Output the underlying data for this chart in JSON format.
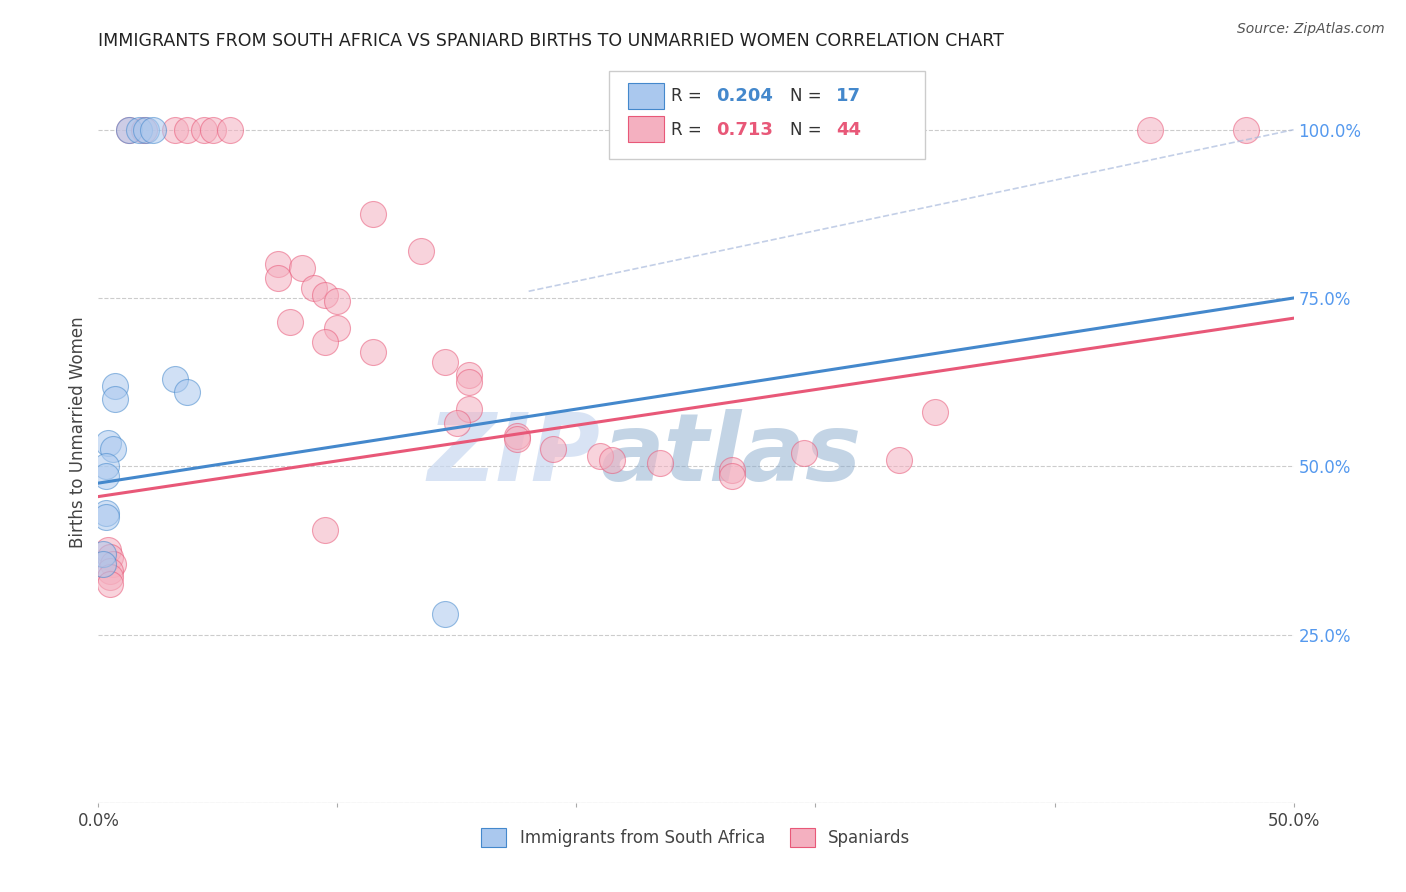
{
  "title": "IMMIGRANTS FROM SOUTH AFRICA VS SPANIARD BIRTHS TO UNMARRIED WOMEN CORRELATION CHART",
  "source": "Source: ZipAtlas.com",
  "ylabel": "Births to Unmarried Women",
  "legend_label_1": "Immigrants from South Africa",
  "legend_label_2": "Spaniards",
  "R1": "0.204",
  "N1": "17",
  "R2": "0.713",
  "N2": "44",
  "blue_color": "#aac8ee",
  "pink_color": "#f4b0c0",
  "blue_line_color": "#4488cc",
  "pink_line_color": "#e85878",
  "watermark_zip_color": "#c8d8f0",
  "watermark_atlas_color": "#88aacc",
  "background_color": "#ffffff",
  "grid_color": "#cccccc",
  "title_color": "#222222",
  "right_axis_color": "#5599ee",
  "blue_scatter": [
    [
      0.013,
      1.0
    ],
    [
      0.017,
      1.0
    ],
    [
      0.02,
      1.0
    ],
    [
      0.023,
      1.0
    ],
    [
      0.032,
      0.63
    ],
    [
      0.037,
      0.61
    ],
    [
      0.007,
      0.62
    ],
    [
      0.007,
      0.6
    ],
    [
      0.004,
      0.535
    ],
    [
      0.006,
      0.525
    ],
    [
      0.003,
      0.5
    ],
    [
      0.003,
      0.485
    ],
    [
      0.003,
      0.43
    ],
    [
      0.003,
      0.425
    ],
    [
      0.002,
      0.37
    ],
    [
      0.002,
      0.355
    ],
    [
      0.145,
      0.28
    ]
  ],
  "pink_scatter": [
    [
      0.013,
      1.0
    ],
    [
      0.019,
      1.0
    ],
    [
      0.032,
      1.0
    ],
    [
      0.037,
      1.0
    ],
    [
      0.044,
      1.0
    ],
    [
      0.048,
      1.0
    ],
    [
      0.055,
      1.0
    ],
    [
      0.44,
      1.0
    ],
    [
      0.48,
      1.0
    ],
    [
      0.115,
      0.875
    ],
    [
      0.135,
      0.82
    ],
    [
      0.075,
      0.8
    ],
    [
      0.085,
      0.795
    ],
    [
      0.075,
      0.78
    ],
    [
      0.09,
      0.765
    ],
    [
      0.095,
      0.755
    ],
    [
      0.1,
      0.745
    ],
    [
      0.08,
      0.715
    ],
    [
      0.1,
      0.705
    ],
    [
      0.095,
      0.685
    ],
    [
      0.115,
      0.67
    ],
    [
      0.145,
      0.655
    ],
    [
      0.155,
      0.635
    ],
    [
      0.155,
      0.625
    ],
    [
      0.155,
      0.585
    ],
    [
      0.15,
      0.565
    ],
    [
      0.175,
      0.545
    ],
    [
      0.175,
      0.54
    ],
    [
      0.19,
      0.525
    ],
    [
      0.21,
      0.515
    ],
    [
      0.215,
      0.51
    ],
    [
      0.235,
      0.505
    ],
    [
      0.265,
      0.495
    ],
    [
      0.265,
      0.485
    ],
    [
      0.295,
      0.52
    ],
    [
      0.335,
      0.51
    ],
    [
      0.35,
      0.58
    ],
    [
      0.095,
      0.405
    ],
    [
      0.004,
      0.375
    ],
    [
      0.005,
      0.365
    ],
    [
      0.006,
      0.355
    ],
    [
      0.005,
      0.345
    ],
    [
      0.005,
      0.335
    ],
    [
      0.005,
      0.325
    ]
  ],
  "blue_line_x": [
    0.0,
    0.5
  ],
  "blue_line_y": [
    0.475,
    0.75
  ],
  "pink_line_x": [
    0.0,
    0.5
  ],
  "pink_line_y": [
    0.455,
    0.72
  ],
  "dashed_line_x": [
    0.18,
    0.5
  ],
  "dashed_line_y": [
    0.76,
    1.0
  ],
  "xmin": 0.0,
  "xmax": 0.5,
  "ymin": 0.0,
  "ymax": 1.1,
  "ytick_vals": [
    0.0,
    0.25,
    0.5,
    0.75,
    1.0
  ]
}
